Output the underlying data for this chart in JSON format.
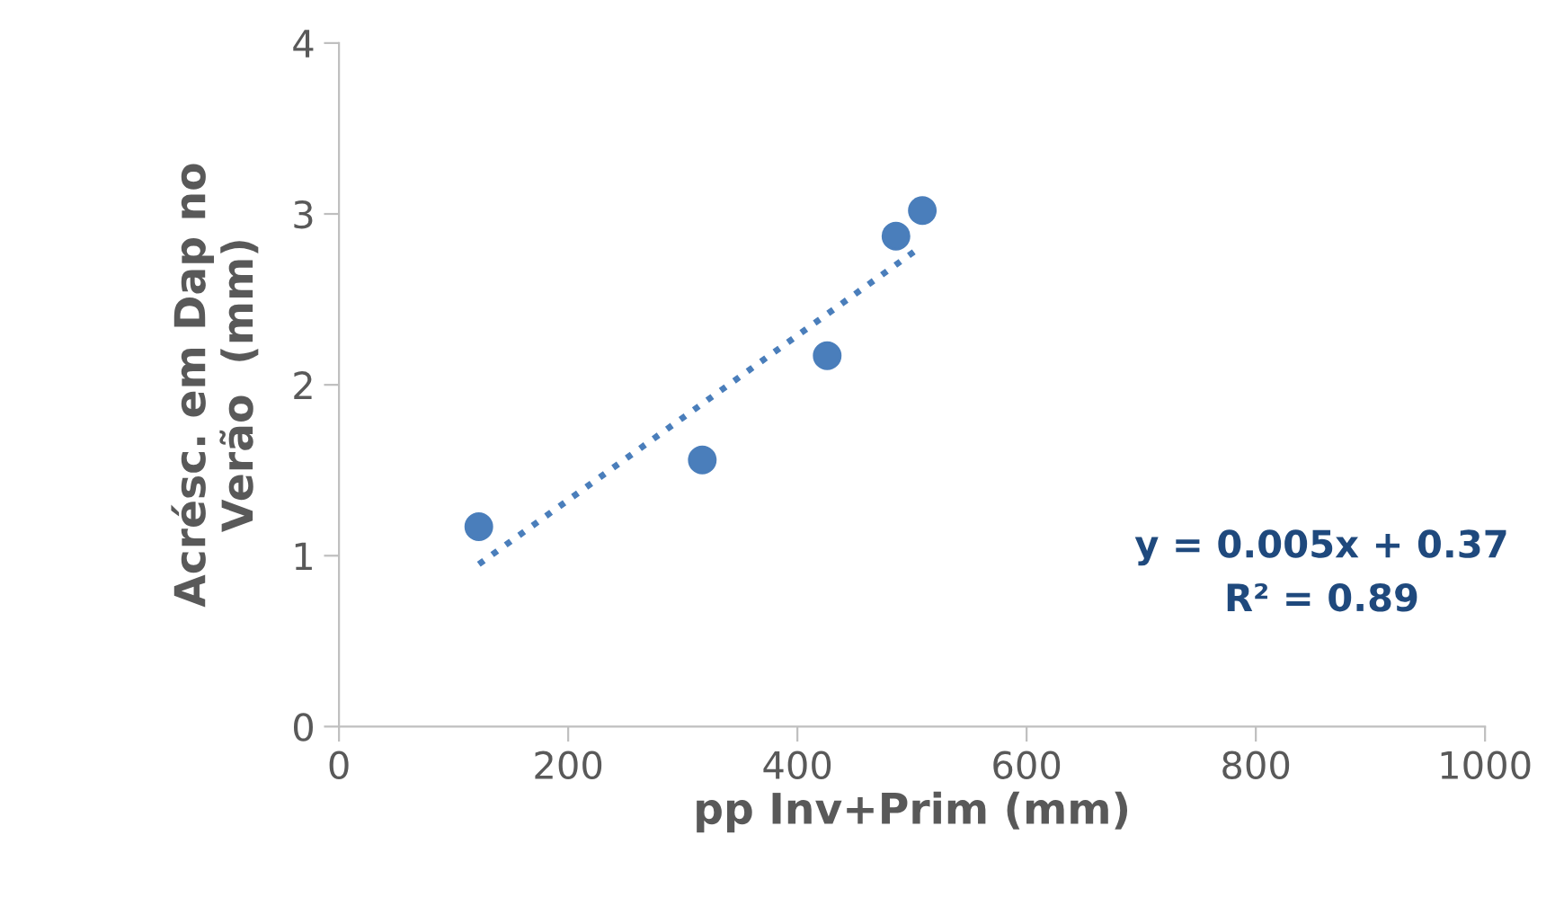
{
  "chart_data": {
    "type": "scatter",
    "xlabel": "pp Inv+Prim (mm)",
    "ylabel": "Acrésc. em Dap no\nVerão  (mm)",
    "x": [
      122,
      317,
      426,
      486,
      509
    ],
    "series": [
      {
        "color": "#4a7ebb",
        "values": [
          1.17,
          1.56,
          2.17,
          2.87,
          3.02
        ],
        "marker": "circle"
      },
      {
        "type": "line",
        "color": "#4a7ebb",
        "x": [
          122,
          502
        ],
        "values": [
          0.95,
          2.78
        ],
        "line_style": "dotted",
        "marker": "none"
      }
    ],
    "annotations": [
      "y = 0.005x + 0.37\nR² = 0.89"
    ],
    "xlim": [
      0,
      1000
    ],
    "ylim": [
      0,
      4
    ],
    "xticks": [
      0,
      200,
      400,
      600,
      800,
      1000
    ],
    "yticks": [
      0,
      1,
      2,
      3,
      4
    ],
    "grid": false,
    "legend": false
  }
}
